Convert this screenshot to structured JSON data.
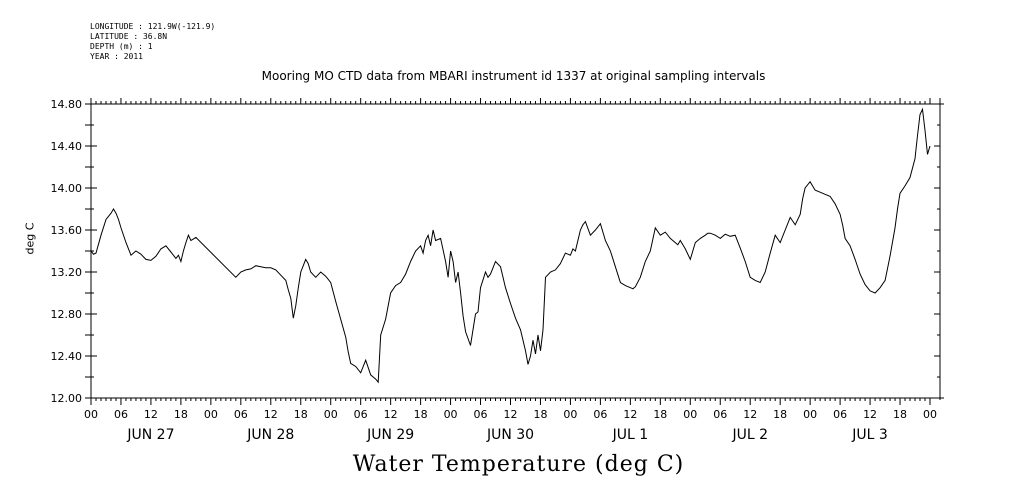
{
  "header": {
    "lines": [
      "LONGITUDE : 121.9W(-121.9)",
      "LATITUDE : 36.8N",
      "DEPTH (m) : 1",
      "YEAR : 2011"
    ]
  },
  "chart_data": {
    "type": "line",
    "title": "Mooring MO CTD data from MBARI instrument id 1337 at original sampling intervals",
    "subtitle": "Water Temperature (deg C)",
    "xlabel": "",
    "ylabel": "deg C",
    "ylim": [
      12.0,
      14.8
    ],
    "xlim_hours": [
      0,
      168
    ],
    "yticks": [
      "12.00",
      "12.40",
      "12.80",
      "13.20",
      "13.60",
      "14.00",
      "14.40",
      "14.80"
    ],
    "hour_ticks": [
      "00",
      "06",
      "12",
      "18",
      "00",
      "06",
      "12",
      "18",
      "00",
      "06",
      "12",
      "18",
      "00",
      "06",
      "12",
      "18",
      "00",
      "06",
      "12",
      "18",
      "00",
      "06",
      "12",
      "18",
      "00",
      "06",
      "12",
      "18",
      "00"
    ],
    "day_labels": [
      "JUN 27",
      "JUN 28",
      "JUN 29",
      "JUN 30",
      "JUL  1",
      "JUL  2",
      "JUL  3"
    ],
    "grid": false,
    "series": [
      {
        "name": "",
        "x_hours": [
          0,
          0.5,
          1,
          2,
          3,
          4,
          4.5,
          5,
          5.5,
          6,
          7,
          8,
          9,
          10,
          11,
          12,
          13,
          14,
          15,
          16,
          17,
          17.5,
          18,
          18.5,
          19,
          19.5,
          20,
          21,
          29,
          30,
          31,
          32,
          33,
          34,
          35,
          36,
          37,
          38,
          39,
          39.5,
          40,
          40.5,
          41,
          41.5,
          42,
          43,
          43.5,
          44,
          45,
          46,
          47,
          48,
          49,
          50,
          51,
          51.5,
          52,
          53,
          54,
          55,
          56,
          56.5,
          57,
          57.5,
          58,
          59,
          60,
          61,
          62,
          63,
          64,
          65,
          66,
          66.5,
          67,
          67.5,
          68,
          68.5,
          69,
          70,
          71,
          71.5,
          72,
          72.5,
          73,
          73.5,
          74,
          74.5,
          75,
          76,
          77,
          77.5,
          78,
          79,
          79.5,
          80,
          81,
          82,
          83,
          84,
          85,
          86,
          86.5,
          87,
          87.5,
          88,
          88.5,
          89,
          89.5,
          90,
          90.5,
          91,
          92,
          93,
          94,
          95,
          96,
          96.5,
          97,
          97.5,
          98,
          98.5,
          99,
          100,
          101,
          102,
          103,
          104,
          105,
          106,
          107,
          108,
          108.5,
          109,
          110,
          111,
          112,
          113,
          114,
          115,
          116,
          117,
          117.5,
          118,
          119,
          120,
          121,
          122,
          123,
          123.5,
          124,
          125,
          126,
          127,
          128,
          129,
          130,
          131,
          132,
          133,
          134,
          135,
          136,
          137,
          138,
          139,
          140,
          141,
          142,
          142.5,
          143,
          144,
          145,
          146,
          147,
          148,
          149,
          150,
          150.5,
          151,
          152,
          153,
          154,
          155,
          156,
          157,
          158,
          159,
          160,
          161,
          161.5,
          162,
          163,
          164,
          165,
          165.5,
          166,
          166.5,
          167,
          167.5,
          168
        ],
        "values": [
          13.4,
          13.37,
          13.38,
          13.55,
          13.7,
          13.76,
          13.8,
          13.76,
          13.7,
          13.62,
          13.48,
          13.36,
          13.4,
          13.37,
          13.32,
          13.31,
          13.35,
          13.42,
          13.45,
          13.39,
          13.33,
          13.36,
          13.3,
          13.4,
          13.48,
          13.55,
          13.5,
          13.53,
          13.15,
          13.2,
          13.22,
          13.23,
          13.26,
          13.25,
          13.24,
          13.24,
          13.22,
          13.17,
          13.12,
          13.03,
          12.95,
          12.76,
          12.88,
          13.05,
          13.2,
          13.32,
          13.28,
          13.2,
          13.15,
          13.2,
          13.16,
          13.1,
          12.92,
          12.75,
          12.58,
          12.44,
          12.33,
          12.3,
          12.24,
          12.36,
          12.22,
          12.2,
          12.18,
          12.15,
          12.6,
          12.75,
          13.0,
          13.07,
          13.1,
          13.18,
          13.3,
          13.4,
          13.45,
          13.38,
          13.5,
          13.55,
          13.45,
          13.6,
          13.5,
          13.52,
          13.3,
          13.15,
          13.4,
          13.3,
          13.1,
          13.2,
          13.0,
          12.78,
          12.63,
          12.5,
          12.8,
          12.82,
          13.05,
          13.2,
          13.15,
          13.18,
          13.3,
          13.25,
          13.05,
          12.9,
          12.76,
          12.65,
          12.55,
          12.45,
          12.32,
          12.4,
          12.55,
          12.42,
          12.6,
          12.45,
          12.65,
          13.15,
          13.2,
          13.22,
          13.28,
          13.38,
          13.36,
          13.42,
          13.4,
          13.5,
          13.6,
          13.65,
          13.68,
          13.55,
          13.6,
          13.66,
          13.5,
          13.4,
          13.25,
          13.1,
          13.07,
          13.05,
          13.04,
          13.06,
          13.15,
          13.3,
          13.4,
          13.62,
          13.55,
          13.58,
          13.52,
          13.48,
          13.46,
          13.5,
          13.42,
          13.32,
          13.48,
          13.52,
          13.55,
          13.57,
          13.57,
          13.55,
          13.52,
          13.56,
          13.54,
          13.55,
          13.43,
          13.3,
          13.15,
          13.12,
          13.1,
          13.2,
          13.38,
          13.55,
          13.48,
          13.6,
          13.72,
          13.65,
          13.75,
          13.9,
          14.0,
          14.06,
          13.98,
          13.96,
          13.94,
          13.92,
          13.85,
          13.75,
          13.65,
          13.52,
          13.45,
          13.32,
          13.18,
          13.08,
          13.02,
          13.0,
          13.05,
          13.12,
          13.35,
          13.62,
          13.8,
          13.95,
          14.02,
          14.1,
          14.28,
          14.5,
          14.7,
          14.75,
          14.55,
          14.32,
          14.4
        ]
      }
    ]
  }
}
